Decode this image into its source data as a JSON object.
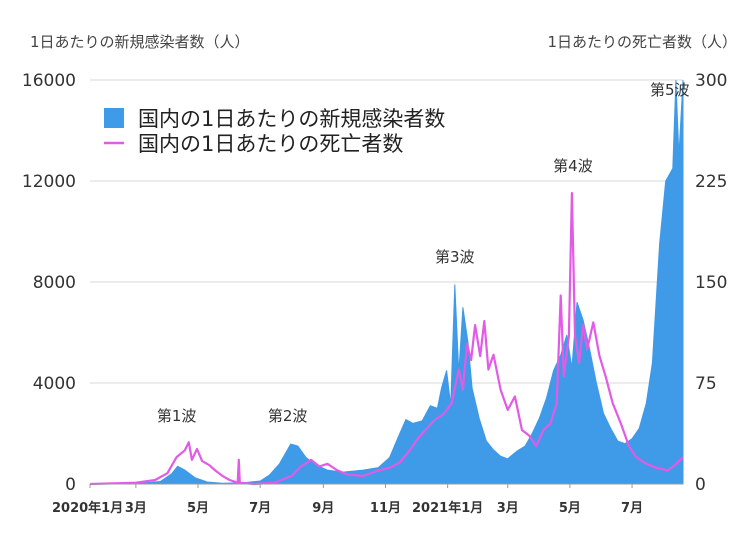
{
  "chart_data": {
    "type": "area",
    "left_axis_title": "1日あたりの新規感染者数（人）",
    "right_axis_title": "1日あたりの死亡者数（人）",
    "y_left": {
      "min": 0,
      "max": 16000,
      "ticks": [
        0,
        4000,
        8000,
        12000,
        16000
      ]
    },
    "y_right": {
      "min": 0,
      "max": 300,
      "ticks": [
        0,
        75,
        150,
        225,
        300
      ]
    },
    "x_range": [
      "2020-01-16",
      "2021-08-20"
    ],
    "x_ticks": [
      {
        "date": "2020-01-16",
        "label": "2020年1月"
      },
      {
        "date": "2020-03-01",
        "label": "3月"
      },
      {
        "date": "2020-05-01",
        "label": "5月"
      },
      {
        "date": "2020-07-01",
        "label": "7月"
      },
      {
        "date": "2020-09-01",
        "label": "9月"
      },
      {
        "date": "2020-11-01",
        "label": "11月"
      },
      {
        "date": "2021-01-01",
        "label": "2021年1月"
      },
      {
        "date": "2021-03-01",
        "label": "3月"
      },
      {
        "date": "2021-05-01",
        "label": "5月"
      },
      {
        "date": "2021-07-01",
        "label": "7月"
      }
    ],
    "grid": true,
    "legend_position": "top-left",
    "series": [
      {
        "name": "国内の1日あたりの新規感染者数",
        "kind": "area",
        "axis": "left",
        "color": "#3f9ae8",
        "points": [
          [
            "2020-01-16",
            0
          ],
          [
            "2020-03-01",
            20
          ],
          [
            "2020-03-25",
            100
          ],
          [
            "2020-04-05",
            400
          ],
          [
            "2020-04-11",
            700
          ],
          [
            "2020-04-18",
            550
          ],
          [
            "2020-04-28",
            250
          ],
          [
            "2020-05-10",
            80
          ],
          [
            "2020-05-25",
            30
          ],
          [
            "2020-06-15",
            50
          ],
          [
            "2020-07-01",
            120
          ],
          [
            "2020-07-10",
            350
          ],
          [
            "2020-07-20",
            800
          ],
          [
            "2020-07-31",
            1580
          ],
          [
            "2020-08-07",
            1500
          ],
          [
            "2020-08-15",
            1050
          ],
          [
            "2020-08-25",
            750
          ],
          [
            "2020-09-05",
            550
          ],
          [
            "2020-09-20",
            470
          ],
          [
            "2020-10-10",
            550
          ],
          [
            "2020-10-25",
            650
          ],
          [
            "2020-11-05",
            1050
          ],
          [
            "2020-11-14",
            1900
          ],
          [
            "2020-11-21",
            2550
          ],
          [
            "2020-11-28",
            2400
          ],
          [
            "2020-12-07",
            2500
          ],
          [
            "2020-12-15",
            3100
          ],
          [
            "2020-12-22",
            3000
          ],
          [
            "2020-12-26",
            3800
          ],
          [
            "2020-12-31",
            4500
          ],
          [
            "2021-01-04",
            3100
          ],
          [
            "2021-01-08",
            7900
          ],
          [
            "2021-01-12",
            4400
          ],
          [
            "2021-01-16",
            7000
          ],
          [
            "2021-01-21",
            5600
          ],
          [
            "2021-01-25",
            3800
          ],
          [
            "2021-02-01",
            2600
          ],
          [
            "2021-02-08",
            1700
          ],
          [
            "2021-02-15",
            1350
          ],
          [
            "2021-02-22",
            1100
          ],
          [
            "2021-03-01",
            1000
          ],
          [
            "2021-03-10",
            1300
          ],
          [
            "2021-03-18",
            1500
          ],
          [
            "2021-03-25",
            2000
          ],
          [
            "2021-04-01",
            2600
          ],
          [
            "2021-04-08",
            3400
          ],
          [
            "2021-04-15",
            4500
          ],
          [
            "2021-04-22",
            5100
          ],
          [
            "2021-04-28",
            5900
          ],
          [
            "2021-05-03",
            4600
          ],
          [
            "2021-05-08",
            7200
          ],
          [
            "2021-05-14",
            6500
          ],
          [
            "2021-05-20",
            5400
          ],
          [
            "2021-05-27",
            4000
          ],
          [
            "2021-06-03",
            2800
          ],
          [
            "2021-06-10",
            2200
          ],
          [
            "2021-06-17",
            1700
          ],
          [
            "2021-06-24",
            1600
          ],
          [
            "2021-07-01",
            1800
          ],
          [
            "2021-07-08",
            2200
          ],
          [
            "2021-07-15",
            3200
          ],
          [
            "2021-07-21",
            4800
          ],
          [
            "2021-07-28",
            9500
          ],
          [
            "2021-08-03",
            12000
          ],
          [
            "2021-08-10",
            12500
          ],
          [
            "2021-08-13",
            16000
          ],
          [
            "2021-08-16",
            13000
          ],
          [
            "2021-08-20",
            16000
          ]
        ]
      },
      {
        "name": "国内の1日あたりの死亡者数",
        "kind": "line",
        "axis": "right",
        "color": "#e25be6",
        "points": [
          [
            "2020-01-16",
            0
          ],
          [
            "2020-03-01",
            1
          ],
          [
            "2020-03-20",
            3
          ],
          [
            "2020-04-01",
            8
          ],
          [
            "2020-04-10",
            20
          ],
          [
            "2020-04-18",
            25
          ],
          [
            "2020-04-22",
            31
          ],
          [
            "2020-04-25",
            18
          ],
          [
            "2020-04-30",
            26
          ],
          [
            "2020-05-05",
            17
          ],
          [
            "2020-05-12",
            14
          ],
          [
            "2020-05-18",
            10
          ],
          [
            "2020-05-25",
            6
          ],
          [
            "2020-06-01",
            3
          ],
          [
            "2020-06-09",
            1
          ],
          [
            "2020-06-10",
            18
          ],
          [
            "2020-06-11",
            1
          ],
          [
            "2020-06-25",
            0
          ],
          [
            "2020-07-15",
            1
          ],
          [
            "2020-08-01",
            6
          ],
          [
            "2020-08-10",
            13
          ],
          [
            "2020-08-20",
            18
          ],
          [
            "2020-08-28",
            13
          ],
          [
            "2020-09-05",
            15
          ],
          [
            "2020-09-15",
            10
          ],
          [
            "2020-09-25",
            7
          ],
          [
            "2020-10-10",
            6
          ],
          [
            "2020-10-25",
            10
          ],
          [
            "2020-11-05",
            12
          ],
          [
            "2020-11-15",
            16
          ],
          [
            "2020-11-25",
            25
          ],
          [
            "2020-12-01",
            32
          ],
          [
            "2020-12-10",
            40
          ],
          [
            "2020-12-20",
            48
          ],
          [
            "2020-12-28",
            52
          ],
          [
            "2021-01-05",
            60
          ],
          [
            "2021-01-12",
            85
          ],
          [
            "2021-01-16",
            70
          ],
          [
            "2021-01-20",
            104
          ],
          [
            "2021-01-24",
            92
          ],
          [
            "2021-01-28",
            118
          ],
          [
            "2021-02-02",
            95
          ],
          [
            "2021-02-06",
            121
          ],
          [
            "2021-02-10",
            85
          ],
          [
            "2021-02-15",
            96
          ],
          [
            "2021-02-22",
            70
          ],
          [
            "2021-03-01",
            55
          ],
          [
            "2021-03-08",
            65
          ],
          [
            "2021-03-15",
            40
          ],
          [
            "2021-03-22",
            36
          ],
          [
            "2021-03-29",
            28
          ],
          [
            "2021-04-05",
            40
          ],
          [
            "2021-04-12",
            45
          ],
          [
            "2021-04-18",
            60
          ],
          [
            "2021-04-22",
            140
          ],
          [
            "2021-04-25",
            80
          ],
          [
            "2021-04-30",
            110
          ],
          [
            "2021-05-03",
            216
          ],
          [
            "2021-05-06",
            110
          ],
          [
            "2021-05-10",
            90
          ],
          [
            "2021-05-14",
            118
          ],
          [
            "2021-05-18",
            100
          ],
          [
            "2021-05-24",
            120
          ],
          [
            "2021-05-30",
            95
          ],
          [
            "2021-06-05",
            80
          ],
          [
            "2021-06-12",
            60
          ],
          [
            "2021-06-20",
            45
          ],
          [
            "2021-06-28",
            28
          ],
          [
            "2021-07-05",
            20
          ],
          [
            "2021-07-15",
            15
          ],
          [
            "2021-07-25",
            12
          ],
          [
            "2021-08-05",
            10
          ],
          [
            "2021-08-12",
            14
          ],
          [
            "2021-08-20",
            20
          ]
        ]
      }
    ],
    "annotations": [
      {
        "label": "第1波",
        "date": "2020-04-10",
        "value": 2500
      },
      {
        "label": "第2波",
        "date": "2020-07-28",
        "value": 2500
      },
      {
        "label": "第3波",
        "date": "2021-01-08",
        "value": 8800
      },
      {
        "label": "第4波",
        "date": "2021-05-04",
        "value": 12400
      },
      {
        "label": "第5波",
        "date": "2021-08-07",
        "value": 15400
      }
    ]
  }
}
